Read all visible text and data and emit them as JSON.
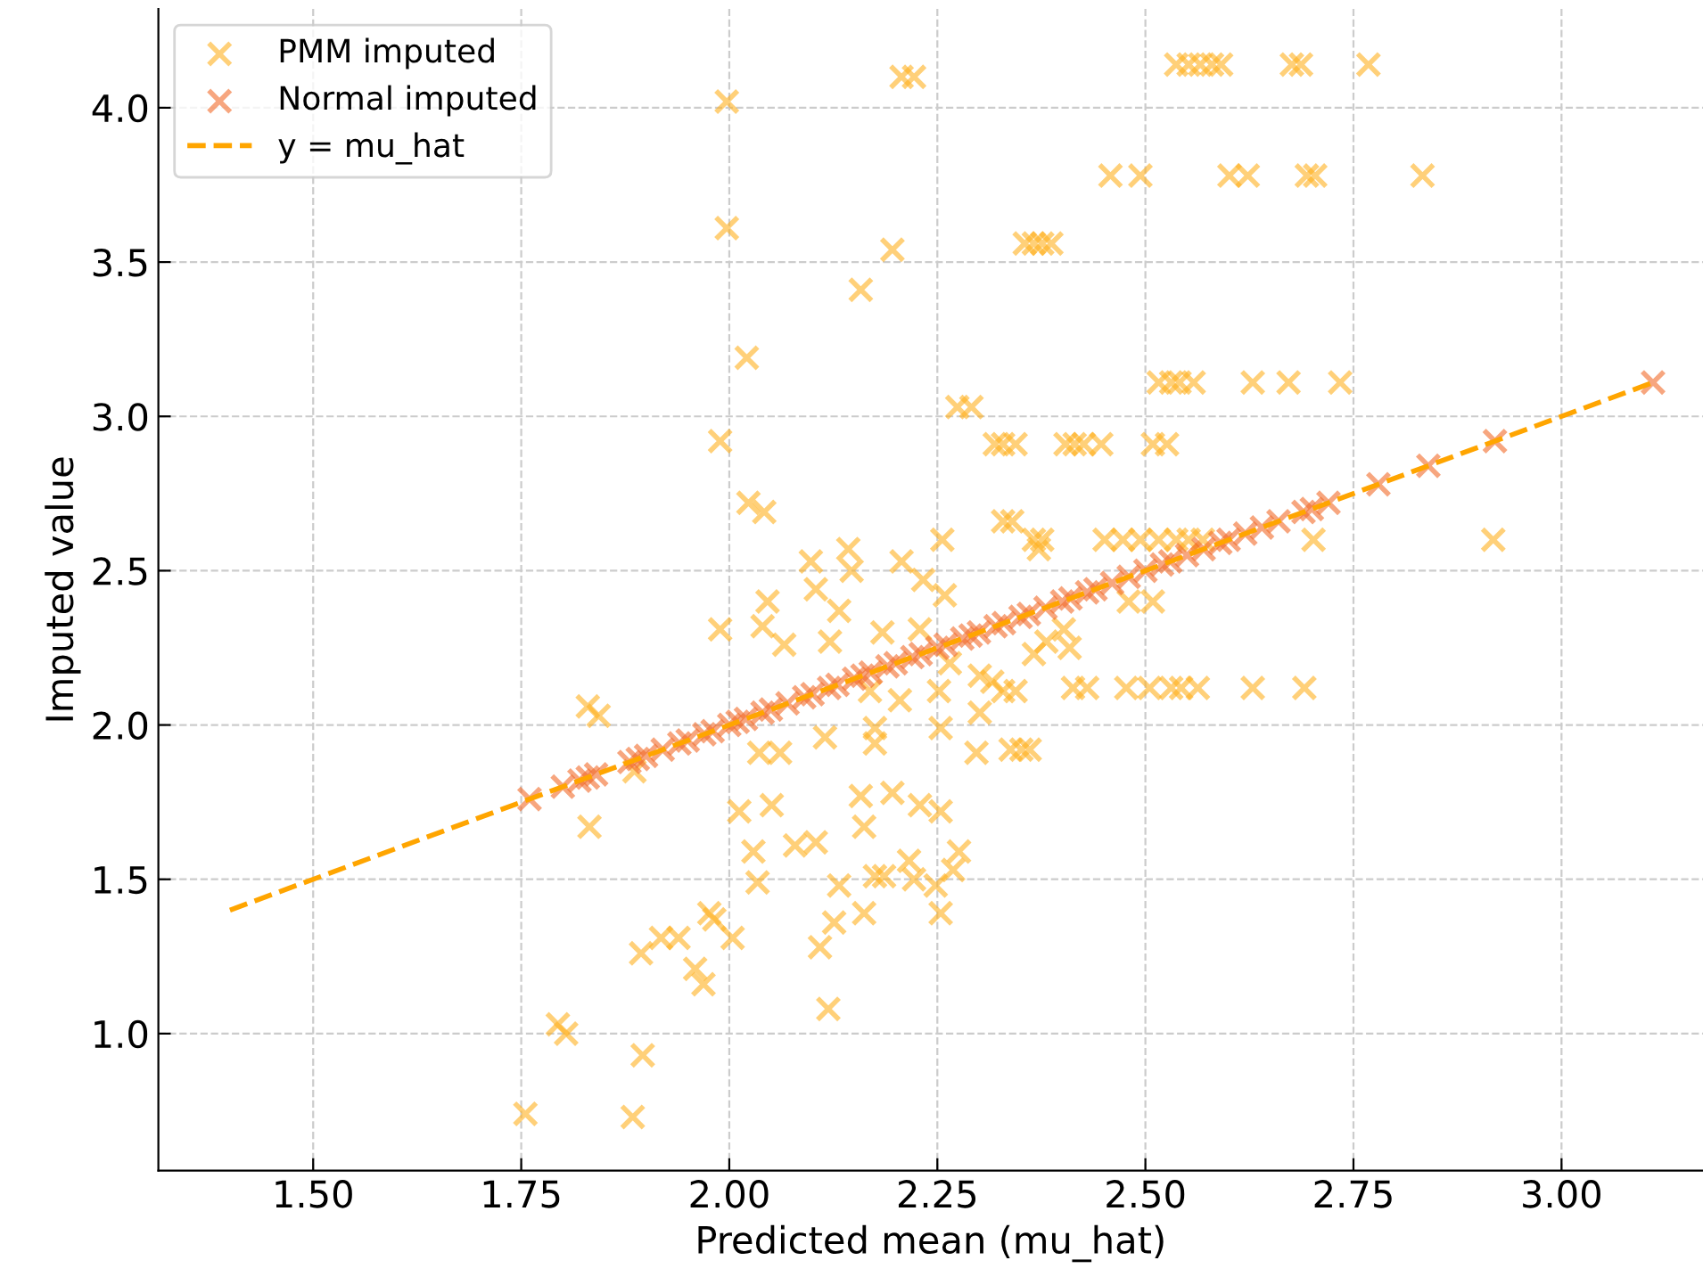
{
  "chart_data": {
    "type": "scatter",
    "xlabel": "Predicted mean (mu_hat)",
    "ylabel": "Imputed value",
    "xlim": [
      1.314,
      3.17
    ],
    "ylim": [
      0.556,
      4.32
    ],
    "xticks": [
      {
        "value": 1.5,
        "label": "1.50"
      },
      {
        "value": 1.75,
        "label": "1.75"
      },
      {
        "value": 2.0,
        "label": "2.00"
      },
      {
        "value": 2.25,
        "label": "2.25"
      },
      {
        "value": 2.5,
        "label": "2.50"
      },
      {
        "value": 2.75,
        "label": "2.75"
      },
      {
        "value": 3.0,
        "label": "3.00"
      }
    ],
    "yticks": [
      {
        "value": 1.0,
        "label": "1.0"
      },
      {
        "value": 1.5,
        "label": "1.5"
      },
      {
        "value": 2.0,
        "label": "2.0"
      },
      {
        "value": 2.5,
        "label": "2.5"
      },
      {
        "value": 3.0,
        "label": "3.0"
      },
      {
        "value": 3.5,
        "label": "3.5"
      },
      {
        "value": 4.0,
        "label": "4.0"
      }
    ],
    "grid": true,
    "legend": "top left",
    "marker": "cross",
    "series": [
      {
        "name": "PMM imputed",
        "color": "#ffb020",
        "x": [
          1.997,
          2.207,
          2.222,
          1.997,
          2.196,
          2.158,
          2.021,
          1.989,
          2.023,
          2.042,
          2.098,
          2.143,
          2.147,
          2.207,
          2.233,
          2.537,
          2.552,
          2.566,
          2.58,
          2.591,
          2.676,
          2.687,
          2.768,
          2.458,
          2.494,
          2.601,
          2.623,
          2.694,
          2.704,
          2.833,
          2.355,
          2.366,
          2.376,
          2.387,
          2.516,
          2.531,
          2.541,
          2.558,
          2.629,
          2.672,
          2.734,
          2.274,
          2.291,
          2.319,
          2.329,
          2.344,
          2.404,
          2.415,
          2.426,
          2.447,
          2.509,
          2.526,
          2.329,
          2.34,
          2.256,
          2.366,
          2.376,
          2.451,
          2.473,
          2.494,
          2.516,
          2.537,
          2.552,
          2.569,
          2.702,
          2.918,
          2.372,
          2.046,
          2.104,
          2.132,
          1.989,
          2.04,
          2.066,
          2.121,
          2.184,
          2.229,
          2.169,
          2.205,
          1.83,
          1.843,
          1.886,
          1.832,
          2.115,
          2.175,
          2.175,
          2.036,
          2.061,
          2.012,
          2.051,
          2.158,
          2.196,
          2.162,
          2.229,
          2.029,
          2.079,
          2.104,
          2.034,
          2.175,
          2.186,
          2.216,
          2.222,
          2.132,
          2.126,
          2.162,
          2.109,
          1.976,
          1.982,
          2.004,
          1.918,
          1.939,
          1.894,
          1.959,
          1.969,
          2.119,
          1.794,
          1.804,
          1.896,
          1.755,
          1.884,
          2.259,
          2.48,
          2.509,
          2.366,
          2.381,
          2.402,
          2.409,
          2.265,
          2.301,
          2.316,
          2.329,
          2.344,
          2.252,
          2.413,
          2.43,
          2.477,
          2.505,
          2.531,
          2.543,
          2.563,
          2.629,
          2.691,
          2.301,
          2.254,
          2.297,
          2.338,
          2.351,
          2.361,
          2.254,
          2.276,
          2.269,
          2.248,
          2.254
        ],
        "values": [
          4.02,
          4.1,
          4.1,
          3.61,
          3.54,
          3.41,
          3.19,
          2.92,
          2.72,
          2.69,
          2.53,
          2.57,
          2.5,
          2.53,
          2.47,
          4.14,
          4.14,
          4.14,
          4.14,
          4.14,
          4.14,
          4.14,
          4.14,
          3.78,
          3.78,
          3.78,
          3.78,
          3.78,
          3.78,
          3.78,
          3.56,
          3.56,
          3.56,
          3.56,
          3.11,
          3.11,
          3.11,
          3.11,
          3.11,
          3.11,
          3.11,
          3.03,
          3.03,
          2.91,
          2.91,
          2.91,
          2.91,
          2.91,
          2.91,
          2.91,
          2.91,
          2.91,
          2.66,
          2.66,
          2.6,
          2.6,
          2.6,
          2.6,
          2.6,
          2.6,
          2.6,
          2.6,
          2.6,
          2.6,
          2.6,
          2.6,
          2.57,
          2.4,
          2.44,
          2.37,
          2.31,
          2.32,
          2.26,
          2.27,
          2.3,
          2.31,
          2.11,
          2.08,
          2.06,
          2.03,
          1.85,
          1.67,
          1.96,
          1.99,
          1.94,
          1.91,
          1.91,
          1.72,
          1.74,
          1.77,
          1.78,
          1.67,
          1.74,
          1.59,
          1.61,
          1.62,
          1.49,
          1.51,
          1.51,
          1.56,
          1.5,
          1.48,
          1.36,
          1.39,
          1.28,
          1.39,
          1.37,
          1.31,
          1.31,
          1.31,
          1.26,
          1.21,
          1.16,
          1.08,
          1.03,
          1.0,
          0.93,
          0.74,
          0.73,
          2.42,
          2.4,
          2.4,
          2.23,
          2.27,
          2.31,
          2.25,
          2.2,
          2.16,
          2.14,
          2.11,
          2.11,
          2.11,
          2.12,
          2.12,
          2.12,
          2.12,
          2.12,
          2.12,
          2.12,
          2.12,
          2.12,
          2.04,
          1.99,
          1.91,
          1.92,
          1.92,
          1.92,
          1.72,
          1.59,
          1.53,
          1.48,
          1.39
        ]
      },
      {
        "name": "Normal imputed",
        "color": "#f26b2a",
        "x": [
          1.76,
          1.8,
          1.82,
          1.83,
          1.84,
          1.88,
          1.89,
          1.9,
          1.92,
          1.94,
          1.95,
          1.97,
          1.98,
          2.0,
          2.01,
          2.02,
          2.04,
          2.05,
          2.07,
          2.09,
          2.1,
          2.12,
          2.13,
          2.15,
          2.16,
          2.17,
          2.19,
          2.2,
          2.22,
          2.23,
          2.25,
          2.26,
          2.28,
          2.29,
          2.3,
          2.32,
          2.33,
          2.35,
          2.36,
          2.38,
          2.4,
          2.41,
          2.43,
          2.44,
          2.46,
          2.48,
          2.5,
          2.52,
          2.53,
          2.55,
          2.57,
          2.59,
          2.6,
          2.62,
          2.64,
          2.66,
          2.69,
          2.7,
          2.72,
          2.78,
          2.84,
          2.92,
          3.11
        ],
        "values": [
          1.76,
          1.8,
          1.82,
          1.83,
          1.84,
          1.88,
          1.89,
          1.9,
          1.92,
          1.94,
          1.95,
          1.97,
          1.98,
          2.0,
          2.01,
          2.02,
          2.04,
          2.05,
          2.07,
          2.09,
          2.1,
          2.12,
          2.13,
          2.15,
          2.16,
          2.17,
          2.19,
          2.2,
          2.22,
          2.23,
          2.25,
          2.26,
          2.28,
          2.29,
          2.3,
          2.32,
          2.33,
          2.35,
          2.36,
          2.38,
          2.4,
          2.41,
          2.43,
          2.44,
          2.46,
          2.48,
          2.5,
          2.52,
          2.53,
          2.55,
          2.57,
          2.59,
          2.6,
          2.62,
          2.64,
          2.66,
          2.69,
          2.7,
          2.72,
          2.78,
          2.84,
          2.92,
          3.11
        ]
      },
      {
        "name": "y = mu_hat",
        "type": "line",
        "color": "#ffa500",
        "line_style": "dashed",
        "marker": "none",
        "x": [
          1.4,
          3.11
        ],
        "values": [
          1.4,
          3.11
        ]
      }
    ]
  }
}
